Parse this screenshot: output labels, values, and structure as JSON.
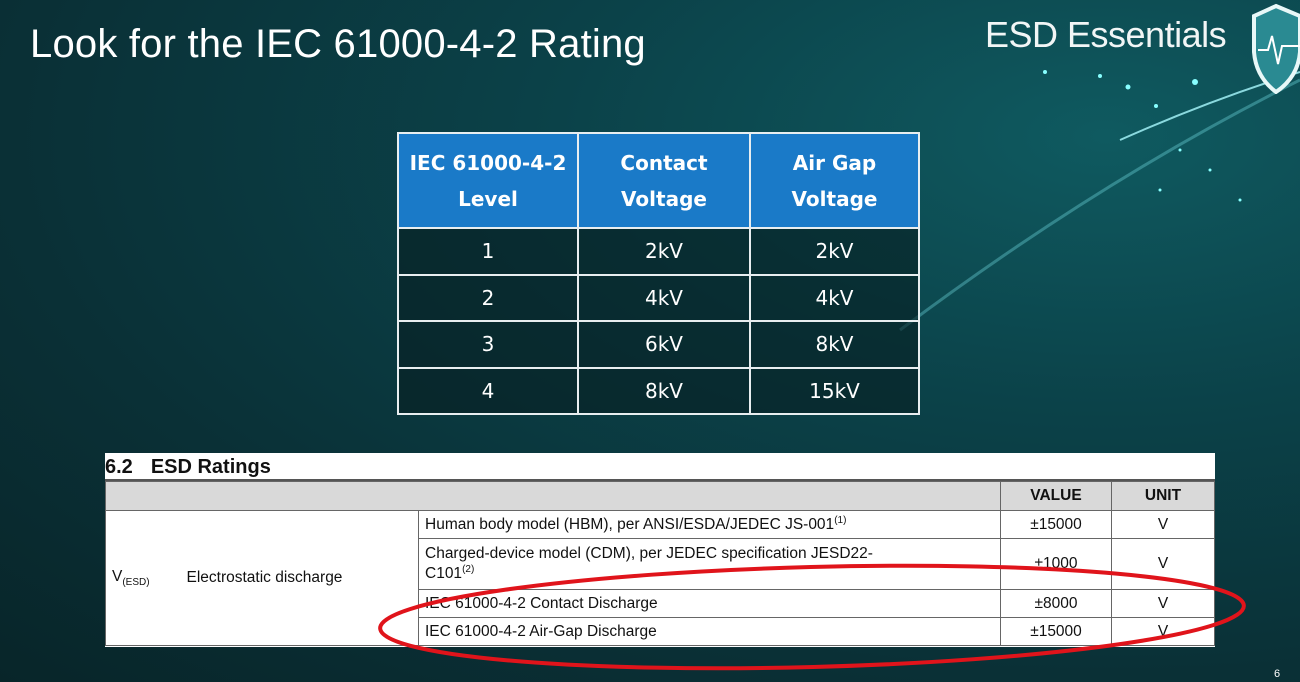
{
  "slide": {
    "title": "Look for the IEC 61000-4-2 Rating",
    "brand": "ESD Essentials",
    "page_number": "6",
    "logo_icon": "shield-heartbeat-icon"
  },
  "iec_table": {
    "headers": [
      [
        "IEC 61000-4-2",
        "Level"
      ],
      [
        "Contact",
        "Voltage"
      ],
      [
        "Air Gap",
        "Voltage"
      ]
    ],
    "rows": [
      [
        "1",
        "2kV",
        "2kV"
      ],
      [
        "2",
        "4kV",
        "4kV"
      ],
      [
        "3",
        "6kV",
        "8kV"
      ],
      [
        "4",
        "8kV",
        "15kV"
      ]
    ],
    "header_color": "#1a7ac8"
  },
  "esd_ratings": {
    "section_number": "6.2",
    "section_title": "ESD Ratings",
    "headers": {
      "value": "VALUE",
      "unit": "UNIT"
    },
    "symbol": "V",
    "symbol_sub": "(ESD)",
    "parameter": "Electrostatic discharge",
    "rows": [
      {
        "condition": "Human body model (HBM), per ANSI/ESDA/JEDEC JS-001",
        "note": "(1)",
        "value": "±15000",
        "unit": "V"
      },
      {
        "condition": "Charged-device model (CDM), per JEDEC specification JESD22-",
        "condition2": "C101",
        "note": "(2)",
        "value": "±1000",
        "unit": "V"
      },
      {
        "condition": "IEC 61000-4-2 Contact Discharge",
        "value": "±8000",
        "unit": "V"
      },
      {
        "condition": "IEC 61000-4-2 Air-Gap Discharge",
        "value": "±15000",
        "unit": "V"
      }
    ],
    "highlight_color": "#e0141b"
  }
}
